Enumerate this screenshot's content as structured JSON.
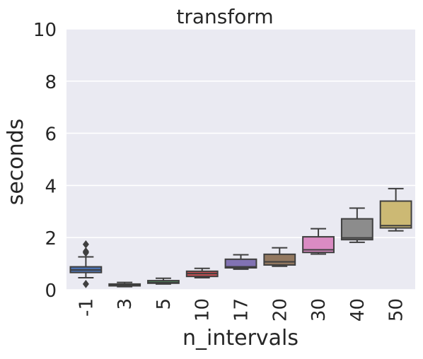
{
  "chart_data": {
    "type": "box",
    "title": "transform",
    "xlabel": "n_intervals",
    "ylabel": "seconds",
    "ylim": [
      0,
      10
    ],
    "yticks": [
      0,
      2,
      4,
      6,
      8,
      10
    ],
    "grid": true,
    "categories": [
      "-1",
      "3",
      "5",
      "10",
      "17",
      "20",
      "30",
      "40",
      "50"
    ],
    "boxes": [
      {
        "category": "-1",
        "min": 0.46,
        "q1": 0.66,
        "median": 0.76,
        "q3": 0.88,
        "max": 1.26,
        "outliers": [
          1.42,
          1.47,
          1.74,
          0.22
        ],
        "color": "#4c72b0"
      },
      {
        "category": "3",
        "min": 0.12,
        "q1": 0.15,
        "median": 0.18,
        "q3": 0.22,
        "max": 0.28,
        "outliers": [],
        "color": "#dd8452"
      },
      {
        "category": "5",
        "min": 0.22,
        "q1": 0.25,
        "median": 0.28,
        "q3": 0.35,
        "max": 0.44,
        "outliers": [],
        "color": "#55a868"
      },
      {
        "category": "10",
        "min": 0.46,
        "q1": 0.51,
        "median": 0.62,
        "q3": 0.71,
        "max": 0.82,
        "outliers": [],
        "color": "#c44e52"
      },
      {
        "category": "17",
        "min": 0.79,
        "q1": 0.84,
        "median": 0.88,
        "q3": 1.17,
        "max": 1.34,
        "outliers": [],
        "color": "#8172b3"
      },
      {
        "category": "20",
        "min": 0.9,
        "q1": 0.95,
        "median": 1.07,
        "q3": 1.36,
        "max": 1.61,
        "outliers": [],
        "color": "#937860"
      },
      {
        "category": "30",
        "min": 1.37,
        "q1": 1.43,
        "median": 1.53,
        "q3": 2.03,
        "max": 2.34,
        "outliers": [],
        "color": "#da8bc3"
      },
      {
        "category": "40",
        "min": 1.82,
        "q1": 1.92,
        "median": 1.99,
        "q3": 2.72,
        "max": 3.13,
        "outliers": [],
        "color": "#8c8c8c"
      },
      {
        "category": "50",
        "min": 2.26,
        "q1": 2.37,
        "median": 2.46,
        "q3": 3.4,
        "max": 3.88,
        "outliers": [],
        "color": "#ccb974"
      }
    ],
    "colors": {
      "plot_background": "#eaeaf2",
      "gridline": "#ffffff",
      "box_edge": "#3f3f3f",
      "text": "#262626"
    }
  }
}
